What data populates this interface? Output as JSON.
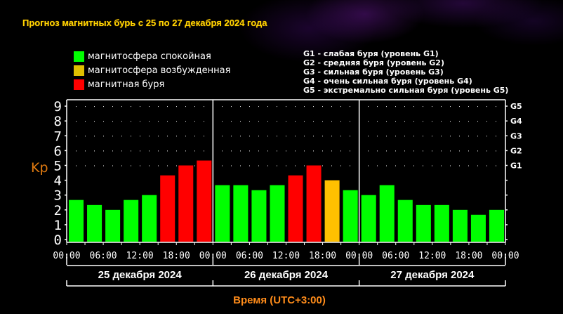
{
  "title": "Прогноз магнитных бурь с 25 по 27 декабря 2024 года",
  "legend": [
    {
      "label": "магнитосфера спокойная",
      "color": "#00ff00"
    },
    {
      "label": "магнитосфера возбужденная",
      "color": "#e0c000"
    },
    {
      "label": "магнитная буря",
      "color": "#ff0000"
    }
  ],
  "g_scale": [
    "G1 - слабая буря (уровень G1)",
    "G2 - средняя буря (уровень G2)",
    "G3 - сильная буря (уровень G3)",
    "G4 - очень сильная буря (уровень G4)",
    "G5 - экстремально сильная буря (уровень G5)"
  ],
  "colors": {
    "quiet": "#00ff00",
    "active": "#ffc000",
    "storm": "#ff0000",
    "axis": "#ffffff",
    "kp_label": "#e07a10",
    "time_label": "#ff8c1a",
    "title": "#ffd500"
  },
  "chart_data": {
    "type": "bar",
    "title": "Прогноз магнитных бурь с 25 по 27 декабря 2024 года",
    "ylabel": "Kp",
    "xlabel": "Время (UTC+3:00)",
    "ylim": [
      0,
      9
    ],
    "yticks": [
      0,
      1,
      2,
      3,
      4,
      5,
      6,
      7,
      8,
      9
    ],
    "right_axis_labels": [
      {
        "label": "G1",
        "kp": 5
      },
      {
        "label": "G2",
        "kp": 6
      },
      {
        "label": "G3",
        "kp": 7
      },
      {
        "label": "G4",
        "kp": 8
      },
      {
        "label": "G5",
        "kp": 9
      }
    ],
    "x_tick_labels": [
      "00:00",
      "06:00",
      "12:00",
      "18:00",
      "00:00",
      "06:00",
      "12:00",
      "18:00",
      "00:00",
      "06:00",
      "12:00",
      "18:00",
      "00:00"
    ],
    "days": [
      "25 декабря 2024",
      "26 декабря 2024",
      "27 декабря 2024"
    ],
    "grid": "dotted, Kp 5-9",
    "categories": [
      "25.12 00-03",
      "25.12 03-06",
      "25.12 06-09",
      "25.12 09-12",
      "25.12 12-15",
      "25.12 15-18",
      "25.12 18-21",
      "25.12 21-24",
      "26.12 00-03",
      "26.12 03-06",
      "26.12 06-09",
      "26.12 09-12",
      "26.12 12-15",
      "26.12 15-18",
      "26.12 18-21",
      "26.12 21-24",
      "27.12 00-03",
      "27.12 03-06",
      "27.12 06-09",
      "27.12 09-12",
      "27.12 12-15",
      "27.12 15-18",
      "27.12 18-21",
      "27.12 21-24"
    ],
    "values": [
      2.67,
      2.33,
      2.0,
      2.67,
      3.0,
      4.33,
      5.0,
      5.33,
      3.67,
      3.67,
      3.33,
      3.67,
      4.33,
      5.0,
      4.0,
      3.33,
      3.0,
      3.67,
      2.67,
      2.33,
      2.33,
      2.0,
      1.67,
      2.0
    ],
    "status": [
      "quiet",
      "quiet",
      "quiet",
      "quiet",
      "quiet",
      "storm",
      "storm",
      "storm",
      "quiet",
      "quiet",
      "quiet",
      "quiet",
      "storm",
      "storm",
      "active",
      "quiet",
      "quiet",
      "quiet",
      "quiet",
      "quiet",
      "quiet",
      "quiet",
      "quiet",
      "quiet"
    ]
  }
}
